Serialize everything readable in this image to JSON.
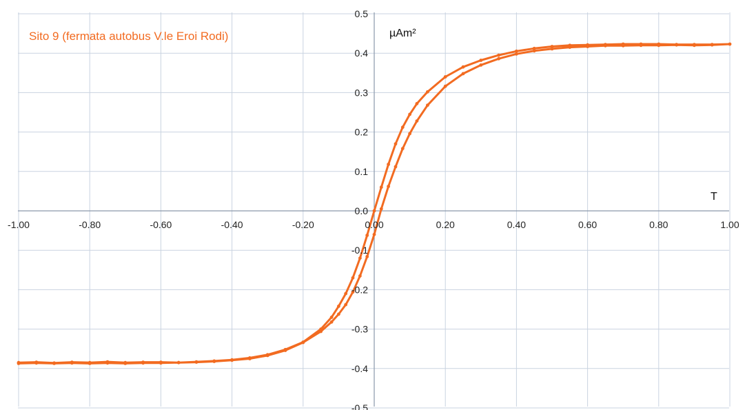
{
  "chart_data": {
    "type": "scatter",
    "title": "Sito 9 (fermata autobus V.le Eroi Rodi)",
    "xlabel": "T",
    "ylabel": "µAm²",
    "xlim": [
      -1.0,
      1.0
    ],
    "ylim": [
      -0.5,
      0.5
    ],
    "x_ticks": [
      "-1.00",
      "-0.80",
      "-0.60",
      "-0.40",
      "-0.20",
      "0.00",
      "0.20",
      "0.40",
      "0.60",
      "0.80",
      "1.00"
    ],
    "y_ticks": [
      "0.5",
      "0.4",
      "0.3",
      "0.2",
      "0.1",
      "0.0",
      "-0.1",
      "-0.2",
      "-0.3",
      "-0.4",
      "-0.5"
    ],
    "grid": true,
    "series": [
      {
        "color": "#f26b21",
        "points": [
          [
            -1.0,
            -0.385
          ],
          [
            -0.95,
            -0.384
          ],
          [
            -0.9,
            -0.386
          ],
          [
            -0.85,
            -0.384
          ],
          [
            -0.8,
            -0.385
          ],
          [
            -0.75,
            -0.383
          ],
          [
            -0.7,
            -0.385
          ],
          [
            -0.65,
            -0.384
          ],
          [
            -0.6,
            -0.384
          ],
          [
            -0.55,
            -0.385
          ],
          [
            -0.5,
            -0.383
          ],
          [
            -0.45,
            -0.381
          ],
          [
            -0.4,
            -0.378
          ],
          [
            -0.35,
            -0.373
          ],
          [
            -0.3,
            -0.365
          ],
          [
            -0.25,
            -0.352
          ],
          [
            -0.2,
            -0.333
          ],
          [
            -0.15,
            -0.3
          ],
          [
            -0.12,
            -0.27
          ],
          [
            -0.1,
            -0.242
          ],
          [
            -0.08,
            -0.21
          ],
          [
            -0.06,
            -0.17
          ],
          [
            -0.04,
            -0.12
          ],
          [
            -0.02,
            -0.062
          ],
          [
            0.0,
            0.0
          ],
          [
            0.02,
            0.06
          ],
          [
            0.04,
            0.118
          ],
          [
            0.06,
            0.17
          ],
          [
            0.08,
            0.212
          ],
          [
            0.1,
            0.245
          ],
          [
            0.12,
            0.272
          ],
          [
            0.15,
            0.302
          ],
          [
            0.2,
            0.34
          ],
          [
            0.25,
            0.365
          ],
          [
            0.3,
            0.382
          ],
          [
            0.35,
            0.395
          ],
          [
            0.4,
            0.405
          ],
          [
            0.45,
            0.412
          ],
          [
            0.5,
            0.417
          ],
          [
            0.55,
            0.42
          ],
          [
            0.6,
            0.421
          ],
          [
            0.65,
            0.422
          ],
          [
            0.7,
            0.423
          ],
          [
            0.75,
            0.423
          ],
          [
            0.8,
            0.423
          ],
          [
            0.85,
            0.422
          ],
          [
            0.9,
            0.422
          ],
          [
            0.95,
            0.422
          ],
          [
            1.0,
            0.423
          ],
          [
            0.95,
            0.421
          ],
          [
            0.9,
            0.42
          ],
          [
            0.85,
            0.421
          ],
          [
            0.8,
            0.42
          ],
          [
            0.75,
            0.42
          ],
          [
            0.7,
            0.419
          ],
          [
            0.65,
            0.419
          ],
          [
            0.6,
            0.417
          ],
          [
            0.55,
            0.415
          ],
          [
            0.5,
            0.411
          ],
          [
            0.45,
            0.406
          ],
          [
            0.4,
            0.398
          ],
          [
            0.35,
            0.386
          ],
          [
            0.3,
            0.37
          ],
          [
            0.25,
            0.348
          ],
          [
            0.2,
            0.316
          ],
          [
            0.15,
            0.268
          ],
          [
            0.12,
            0.228
          ],
          [
            0.1,
            0.196
          ],
          [
            0.08,
            0.158
          ],
          [
            0.06,
            0.112
          ],
          [
            0.04,
            0.062
          ],
          [
            0.02,
            0.005
          ],
          [
            0.0,
            -0.06
          ],
          [
            -0.02,
            -0.116
          ],
          [
            -0.04,
            -0.165
          ],
          [
            -0.06,
            -0.206
          ],
          [
            -0.08,
            -0.238
          ],
          [
            -0.1,
            -0.262
          ],
          [
            -0.12,
            -0.282
          ],
          [
            -0.15,
            -0.306
          ],
          [
            -0.2,
            -0.334
          ],
          [
            -0.25,
            -0.354
          ],
          [
            -0.3,
            -0.367
          ],
          [
            -0.35,
            -0.375
          ],
          [
            -0.4,
            -0.379
          ],
          [
            -0.45,
            -0.382
          ],
          [
            -0.5,
            -0.384
          ],
          [
            -0.55,
            -0.385
          ],
          [
            -0.6,
            -0.386
          ],
          [
            -0.65,
            -0.386
          ],
          [
            -0.7,
            -0.387
          ],
          [
            -0.75,
            -0.386
          ],
          [
            -0.8,
            -0.387
          ],
          [
            -0.85,
            -0.386
          ],
          [
            -0.9,
            -0.387
          ],
          [
            -0.95,
            -0.386
          ],
          [
            -1.0,
            -0.387
          ]
        ]
      }
    ]
  }
}
